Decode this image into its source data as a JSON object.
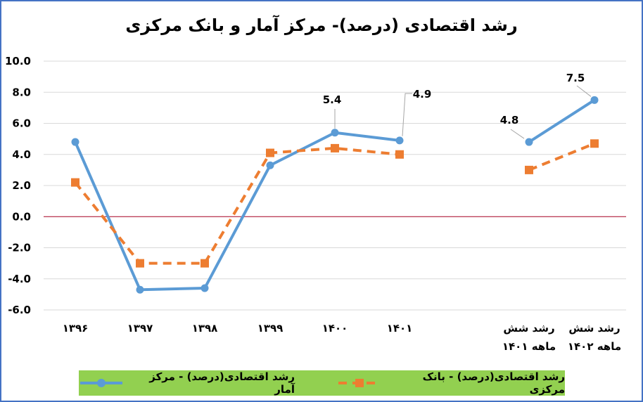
{
  "chart_data": {
    "type": "line",
    "title": "رشد اقتصادی (درصد)- مرکز آمار و بانک مرکزی",
    "xlabel": "",
    "ylabel": "",
    "ylim": [
      -6,
      10
    ],
    "yticks": [
      "10.0",
      "8.0",
      "6.0",
      "4.0",
      "2.0",
      "0.0",
      "-2.0",
      "-4.0",
      "-6.0"
    ],
    "grid": true,
    "legend_position": "bottom",
    "categories": [
      "۱۳۹۶",
      "۱۳۹۷",
      "۱۳۹۸",
      "۱۳۹۹",
      "۱۴۰۰",
      "۱۴۰۱",
      "رشد شش ماهه ۱۴۰۱",
      "رشد شش ماهه ۱۴۰۲"
    ],
    "category_lines": [
      [
        "۱۳۹۶"
      ],
      [
        "۱۳۹۷"
      ],
      [
        "۱۳۹۸"
      ],
      [
        "۱۳۹۹"
      ],
      [
        "۱۴۰۰"
      ],
      [
        "۱۴۰۱"
      ],
      [
        "رشد شش",
        "ماهه ۱۴۰۱"
      ],
      [
        "رشد شش",
        "ماهه ۱۴۰۲"
      ]
    ],
    "series": [
      {
        "name": "رشد اقتصادی(درصد) - مرکز آمار",
        "color": "#5B9BD5",
        "marker": "circle",
        "style": "solid",
        "values": [
          4.8,
          -4.7,
          -4.6,
          3.3,
          5.4,
          4.9,
          4.8,
          7.5
        ],
        "data_labels": {
          "4": "5.4",
          "5": "4.9",
          "6": "4.8",
          "7": "7.5"
        }
      },
      {
        "name": "رشد اقتصادی(درصد) - بانک مرکزی",
        "color": "#ED7D31",
        "marker": "square",
        "style": "dashed",
        "values": [
          2.2,
          -3.0,
          -3.0,
          4.1,
          4.4,
          4.0,
          3.0,
          4.7
        ]
      }
    ],
    "segments": [
      [
        0,
        5
      ],
      [
        6,
        7
      ]
    ],
    "zero_line_color": "#A50021",
    "legend_bg": "#92D050",
    "border_color": "#4472C4"
  },
  "legend": {
    "items": [
      {
        "label": "رشد اقتصادی(درصد) - بانک مرکزی"
      },
      {
        "label": "رشد اقتصادی(درصد) - مرکز آمار"
      }
    ]
  }
}
